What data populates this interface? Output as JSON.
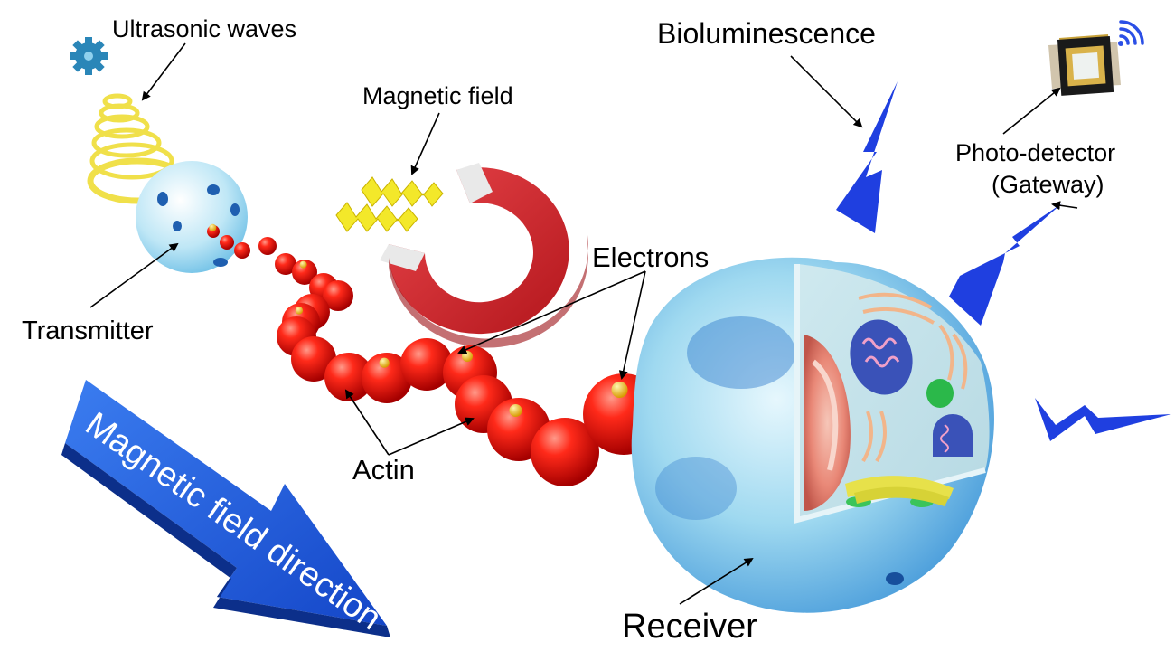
{
  "labels": {
    "ultrasonic": "Ultrasonic waves",
    "magnetic_field": "Magnetic field",
    "bioluminescence": "Bioluminescence",
    "photodetector_line1": "Photo-detector",
    "photodetector_line2": "(Gateway)",
    "electrons": "Electrons",
    "transmitter": "Transmitter",
    "actin": "Actin",
    "receiver": "Receiver",
    "arrow_text": "Magnetic field direction"
  },
  "colors": {
    "actin_bead": "#e60d0d",
    "electron": "#f2c21a",
    "bolt": "#1f3fe0",
    "arrow": "#1c5ee0",
    "magnet": "#d6262a",
    "coil": "#f0e04a",
    "cell_shell": "#8fd3ec"
  },
  "icons": {
    "gear": "gear-icon",
    "wifi": "wifi-icon"
  }
}
